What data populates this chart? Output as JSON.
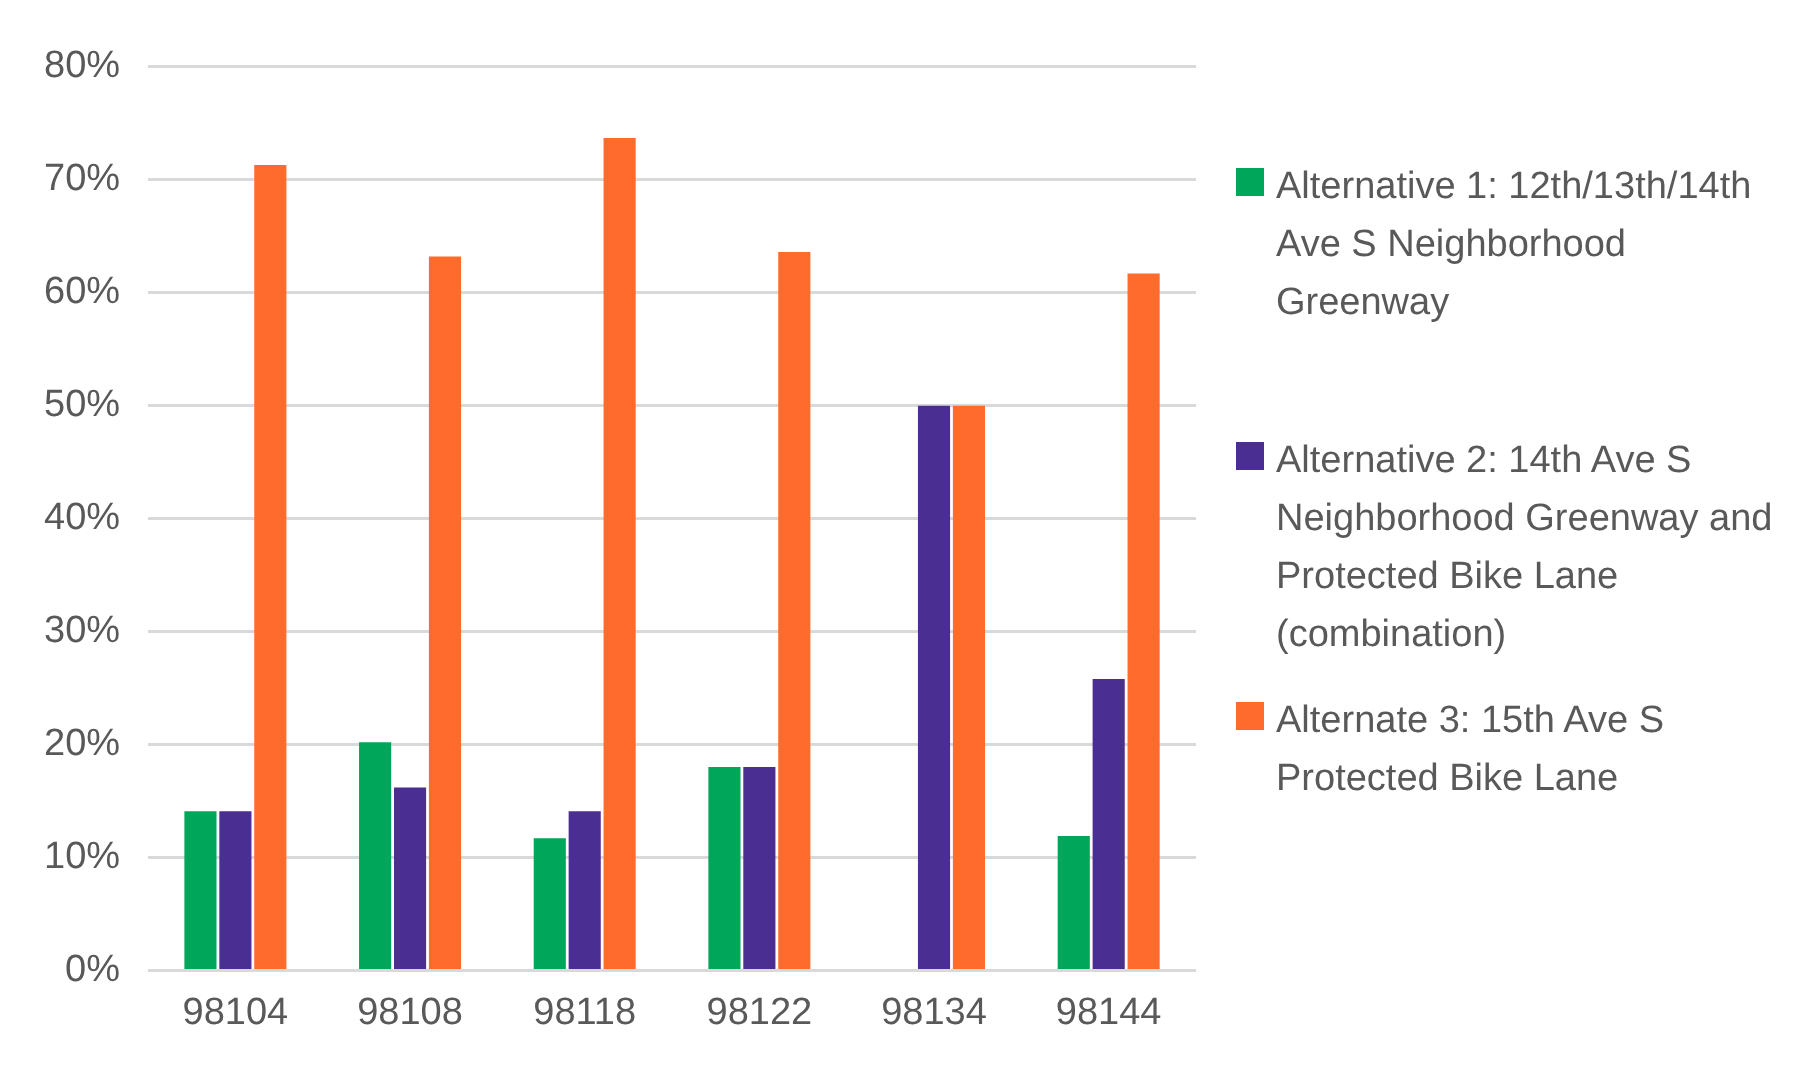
{
  "chart_data": {
    "type": "bar",
    "categories": [
      "98104",
      "98108",
      "98118",
      "98122",
      "98134",
      "98144"
    ],
    "series": [
      {
        "name": "Alternative 1: 12th/13th/14th Ave S Neighborhood Greenway",
        "color": "#00a65a",
        "values": [
          14.1,
          20.2,
          11.7,
          18,
          0,
          11.9
        ]
      },
      {
        "name": "Alternative 2: 14th Ave S Neighborhood Greenway and Protected Bike Lane (combination)",
        "color": "#4b2e91",
        "values": [
          14.1,
          16.2,
          14.1,
          18,
          50,
          25.8
        ]
      },
      {
        "name": "Alternate 3: 15th Ave S Protected Bike Lane",
        "color": "#ff6b2d",
        "values": [
          71.3,
          63.2,
          73.7,
          63.6,
          50,
          61.7
        ]
      }
    ],
    "ylim": [
      0,
      80
    ],
    "yticks": [
      {
        "value": 0,
        "label": "0%"
      },
      {
        "value": 10,
        "label": "10%"
      },
      {
        "value": 20,
        "label": "20%"
      },
      {
        "value": 30,
        "label": "30%"
      },
      {
        "value": 40,
        "label": "40%"
      },
      {
        "value": 50,
        "label": "50%"
      },
      {
        "value": 60,
        "label": "60%"
      },
      {
        "value": 70,
        "label": "70%"
      },
      {
        "value": 80,
        "label": "80%"
      }
    ],
    "grid": "y",
    "legend": "right"
  }
}
